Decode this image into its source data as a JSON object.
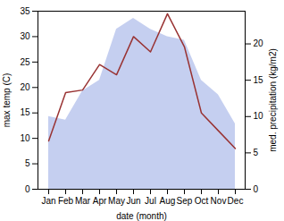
{
  "chart_data": {
    "type": "line",
    "xlabel": "date (month)",
    "ylabel": "max temp (C)",
    "y2label": "med. precipitation (kg/m2)",
    "categories": [
      "Jan",
      "Feb",
      "Mar",
      "Apr",
      "May",
      "Jun",
      "Jul",
      "Aug",
      "Sep",
      "Oct",
      "Nov",
      "Dec"
    ],
    "series": [
      {
        "type": "area",
        "axis": "y2",
        "color": "#c5cff0",
        "values": [
          10.0,
          9.5,
          13.5,
          15.0,
          22.0,
          23.5,
          22.0,
          21.0,
          20.5,
          15.0,
          13.0,
          9.0
        ]
      },
      {
        "type": "line",
        "color": "#993333",
        "values": [
          9.5,
          19.0,
          19.5,
          24.5,
          22.5,
          30.0,
          27.0,
          34.5,
          28.0,
          15.0,
          11.5,
          8.0
        ]
      }
    ],
    "ylim": [
      0,
      35
    ],
    "yticks": [
      0,
      5,
      10,
      15,
      20,
      25,
      30,
      35
    ],
    "y2lim": [
      0,
      24.5
    ],
    "y2ticks": [
      0,
      5,
      10,
      15,
      20
    ]
  }
}
